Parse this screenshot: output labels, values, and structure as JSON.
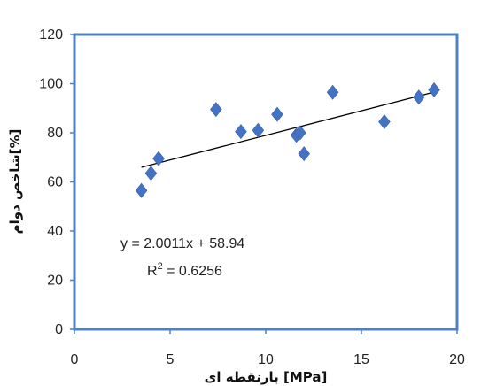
{
  "chart_data": {
    "type": "scatter",
    "xlabel": "بارنقطه ای [MPa]",
    "ylabel": "شاخص دوام[%]",
    "xlim": [
      0,
      20
    ],
    "ylim": [
      0,
      120
    ],
    "x_ticks": [
      "0",
      "5",
      "10",
      "15",
      "20"
    ],
    "y_ticks": [
      "0",
      "20",
      "40",
      "60",
      "80",
      "100",
      "120"
    ],
    "grid": false,
    "legend": "none",
    "marker": "diamond",
    "marker_color": "#4472C4",
    "plot_border_color": "#4F81BD",
    "trendline_color": "#000000",
    "points": [
      {
        "x": 3.5,
        "y": 56.5
      },
      {
        "x": 4.0,
        "y": 63.5
      },
      {
        "x": 4.4,
        "y": 69.5
      },
      {
        "x": 7.4,
        "y": 89.5
      },
      {
        "x": 8.7,
        "y": 80.5
      },
      {
        "x": 9.6,
        "y": 81.0
      },
      {
        "x": 10.6,
        "y": 87.5
      },
      {
        "x": 11.6,
        "y": 79.0
      },
      {
        "x": 11.8,
        "y": 80.0
      },
      {
        "x": 12.0,
        "y": 71.5
      },
      {
        "x": 13.5,
        "y": 96.5
      },
      {
        "x": 16.2,
        "y": 84.5
      },
      {
        "x": 18.0,
        "y": 94.5
      },
      {
        "x": 18.8,
        "y": 97.5
      }
    ],
    "trendline": {
      "slope": 2.0011,
      "intercept": 58.94,
      "x_start": 3.5,
      "x_end": 18.8
    },
    "annotation_equation": "y = 2.0011x + 58.94",
    "annotation_r2_prefix": "R",
    "annotation_r2_sup": "2",
    "annotation_r2_value": " = 0.6256"
  }
}
